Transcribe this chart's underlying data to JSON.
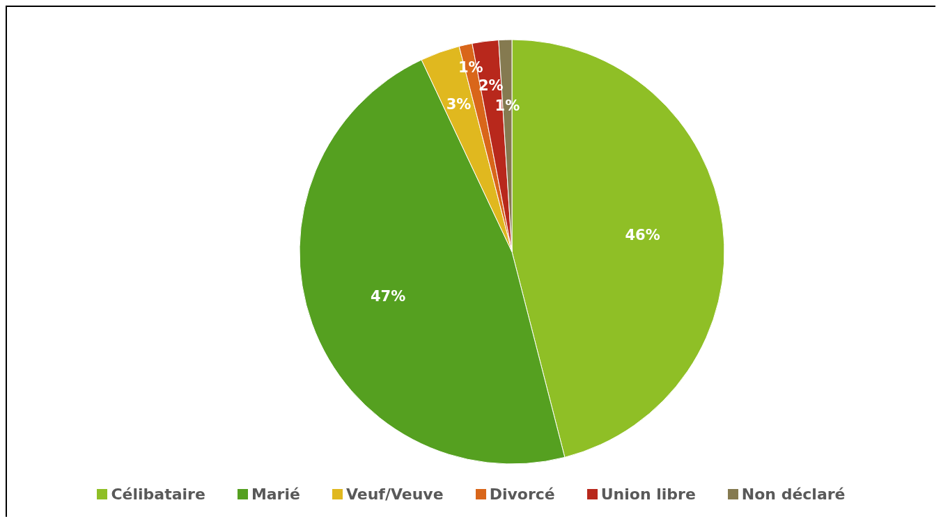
{
  "chart_data": {
    "type": "pie",
    "categories": [
      "Célibataire",
      "Marié",
      "Veuf/Veuve",
      "Divorcé",
      "Union libre",
      "Non déclaré"
    ],
    "values": [
      46,
      47,
      3,
      1,
      2,
      1
    ],
    "colors": [
      "#8fbf26",
      "#55a020",
      "#e0b81f",
      "#d9661a",
      "#b8281c",
      "#857a50"
    ],
    "value_labels": [
      "46%",
      "47%",
      "3%",
      "1%",
      "2%",
      "1%"
    ],
    "legend": "bottom"
  }
}
